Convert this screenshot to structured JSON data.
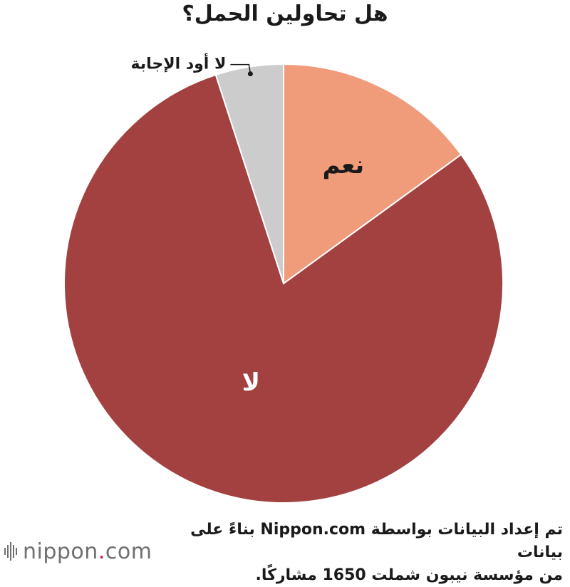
{
  "chart_data": {
    "type": "pie",
    "title": "هل تحاولين الحمل؟",
    "start_angle_deg": 0,
    "direction": "clockwise",
    "slices": [
      {
        "label": "نعم",
        "value": 15,
        "color": "#f09b7a",
        "label_color": "#1a1a1a",
        "label_style": "inside"
      },
      {
        "label": "لا",
        "value": 80,
        "color": "#a34141",
        "label_color": "#ffffff",
        "label_style": "inside"
      },
      {
        "label": "لا أود الإجابة",
        "value": 5,
        "color": "#cccccc",
        "label_color": "#1a1a1a",
        "label_style": "callout"
      }
    ],
    "legend": "none"
  },
  "footer": {
    "source_line1": "تم إعداد البيانات بواسطة Nippon.com بناءً على بيانات",
    "source_line2": "من مؤسسة نيبون شملت 1650 مشاركًا.",
    "logo_main": "nippon",
    "logo_dot": ".",
    "logo_suffix": "com"
  }
}
